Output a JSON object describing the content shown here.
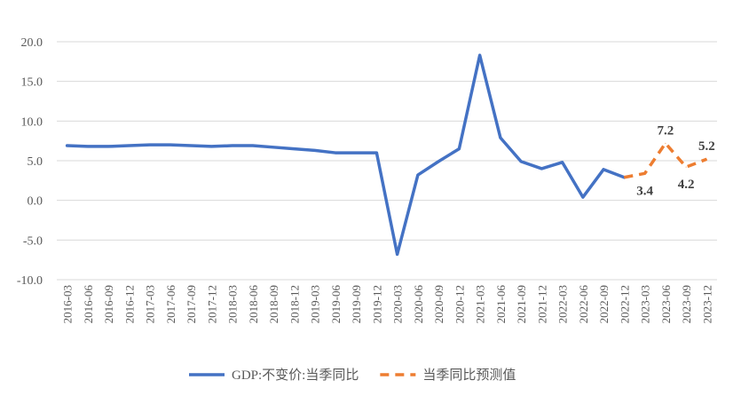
{
  "chart_data": {
    "type": "line",
    "title": "",
    "xlabel": "",
    "ylabel": "",
    "ylim": [
      -10,
      20
    ],
    "yticks": [
      20,
      15,
      10,
      5,
      0,
      -5,
      -10
    ],
    "yticks_labels": [
      "20.0",
      "15.0",
      "10.0",
      "5.0",
      "0.0",
      "-5.0",
      "-10.0"
    ],
    "grid": true,
    "legend_position": "bottom",
    "categories": [
      "2016-03",
      "2016-06",
      "2016-09",
      "2016-12",
      "2017-03",
      "2017-06",
      "2017-09",
      "2017-12",
      "2018-03",
      "2018-06",
      "2018-09",
      "2018-12",
      "2019-03",
      "2019-06",
      "2019-09",
      "2019-12",
      "2020-03",
      "2020-06",
      "2020-09",
      "2020-12",
      "2021-03",
      "2021-06",
      "2021-09",
      "2021-12",
      "2022-03",
      "2022-06",
      "2022-09",
      "2022-12",
      "2023-03",
      "2023-06",
      "2023-09",
      "2023-12"
    ],
    "series": [
      {
        "name": "GDP:不变价:当季同比",
        "color": "#4472c4",
        "style": "solid",
        "values": [
          6.9,
          6.8,
          6.8,
          6.9,
          7.0,
          7.0,
          6.9,
          6.8,
          6.9,
          6.9,
          6.7,
          6.5,
          6.3,
          6.0,
          6.0,
          6.0,
          -6.8,
          3.2,
          4.9,
          6.5,
          18.3,
          7.9,
          4.9,
          4.0,
          4.8,
          0.4,
          3.9,
          2.9,
          null,
          null,
          null,
          null
        ]
      },
      {
        "name": "当季同比预测值",
        "color": "#ed7d31",
        "style": "dashed",
        "values": [
          null,
          null,
          null,
          null,
          null,
          null,
          null,
          null,
          null,
          null,
          null,
          null,
          null,
          null,
          null,
          null,
          null,
          null,
          null,
          null,
          null,
          null,
          null,
          null,
          null,
          null,
          null,
          2.9,
          3.4,
          7.2,
          4.2,
          5.2
        ]
      }
    ],
    "data_labels": [
      {
        "category": "2023-03",
        "text": "3.4",
        "position": "below"
      },
      {
        "category": "2023-06",
        "text": "7.2",
        "position": "above"
      },
      {
        "category": "2023-09",
        "text": "4.2",
        "position": "below"
      },
      {
        "category": "2023-12",
        "text": "5.2",
        "position": "above"
      }
    ]
  }
}
